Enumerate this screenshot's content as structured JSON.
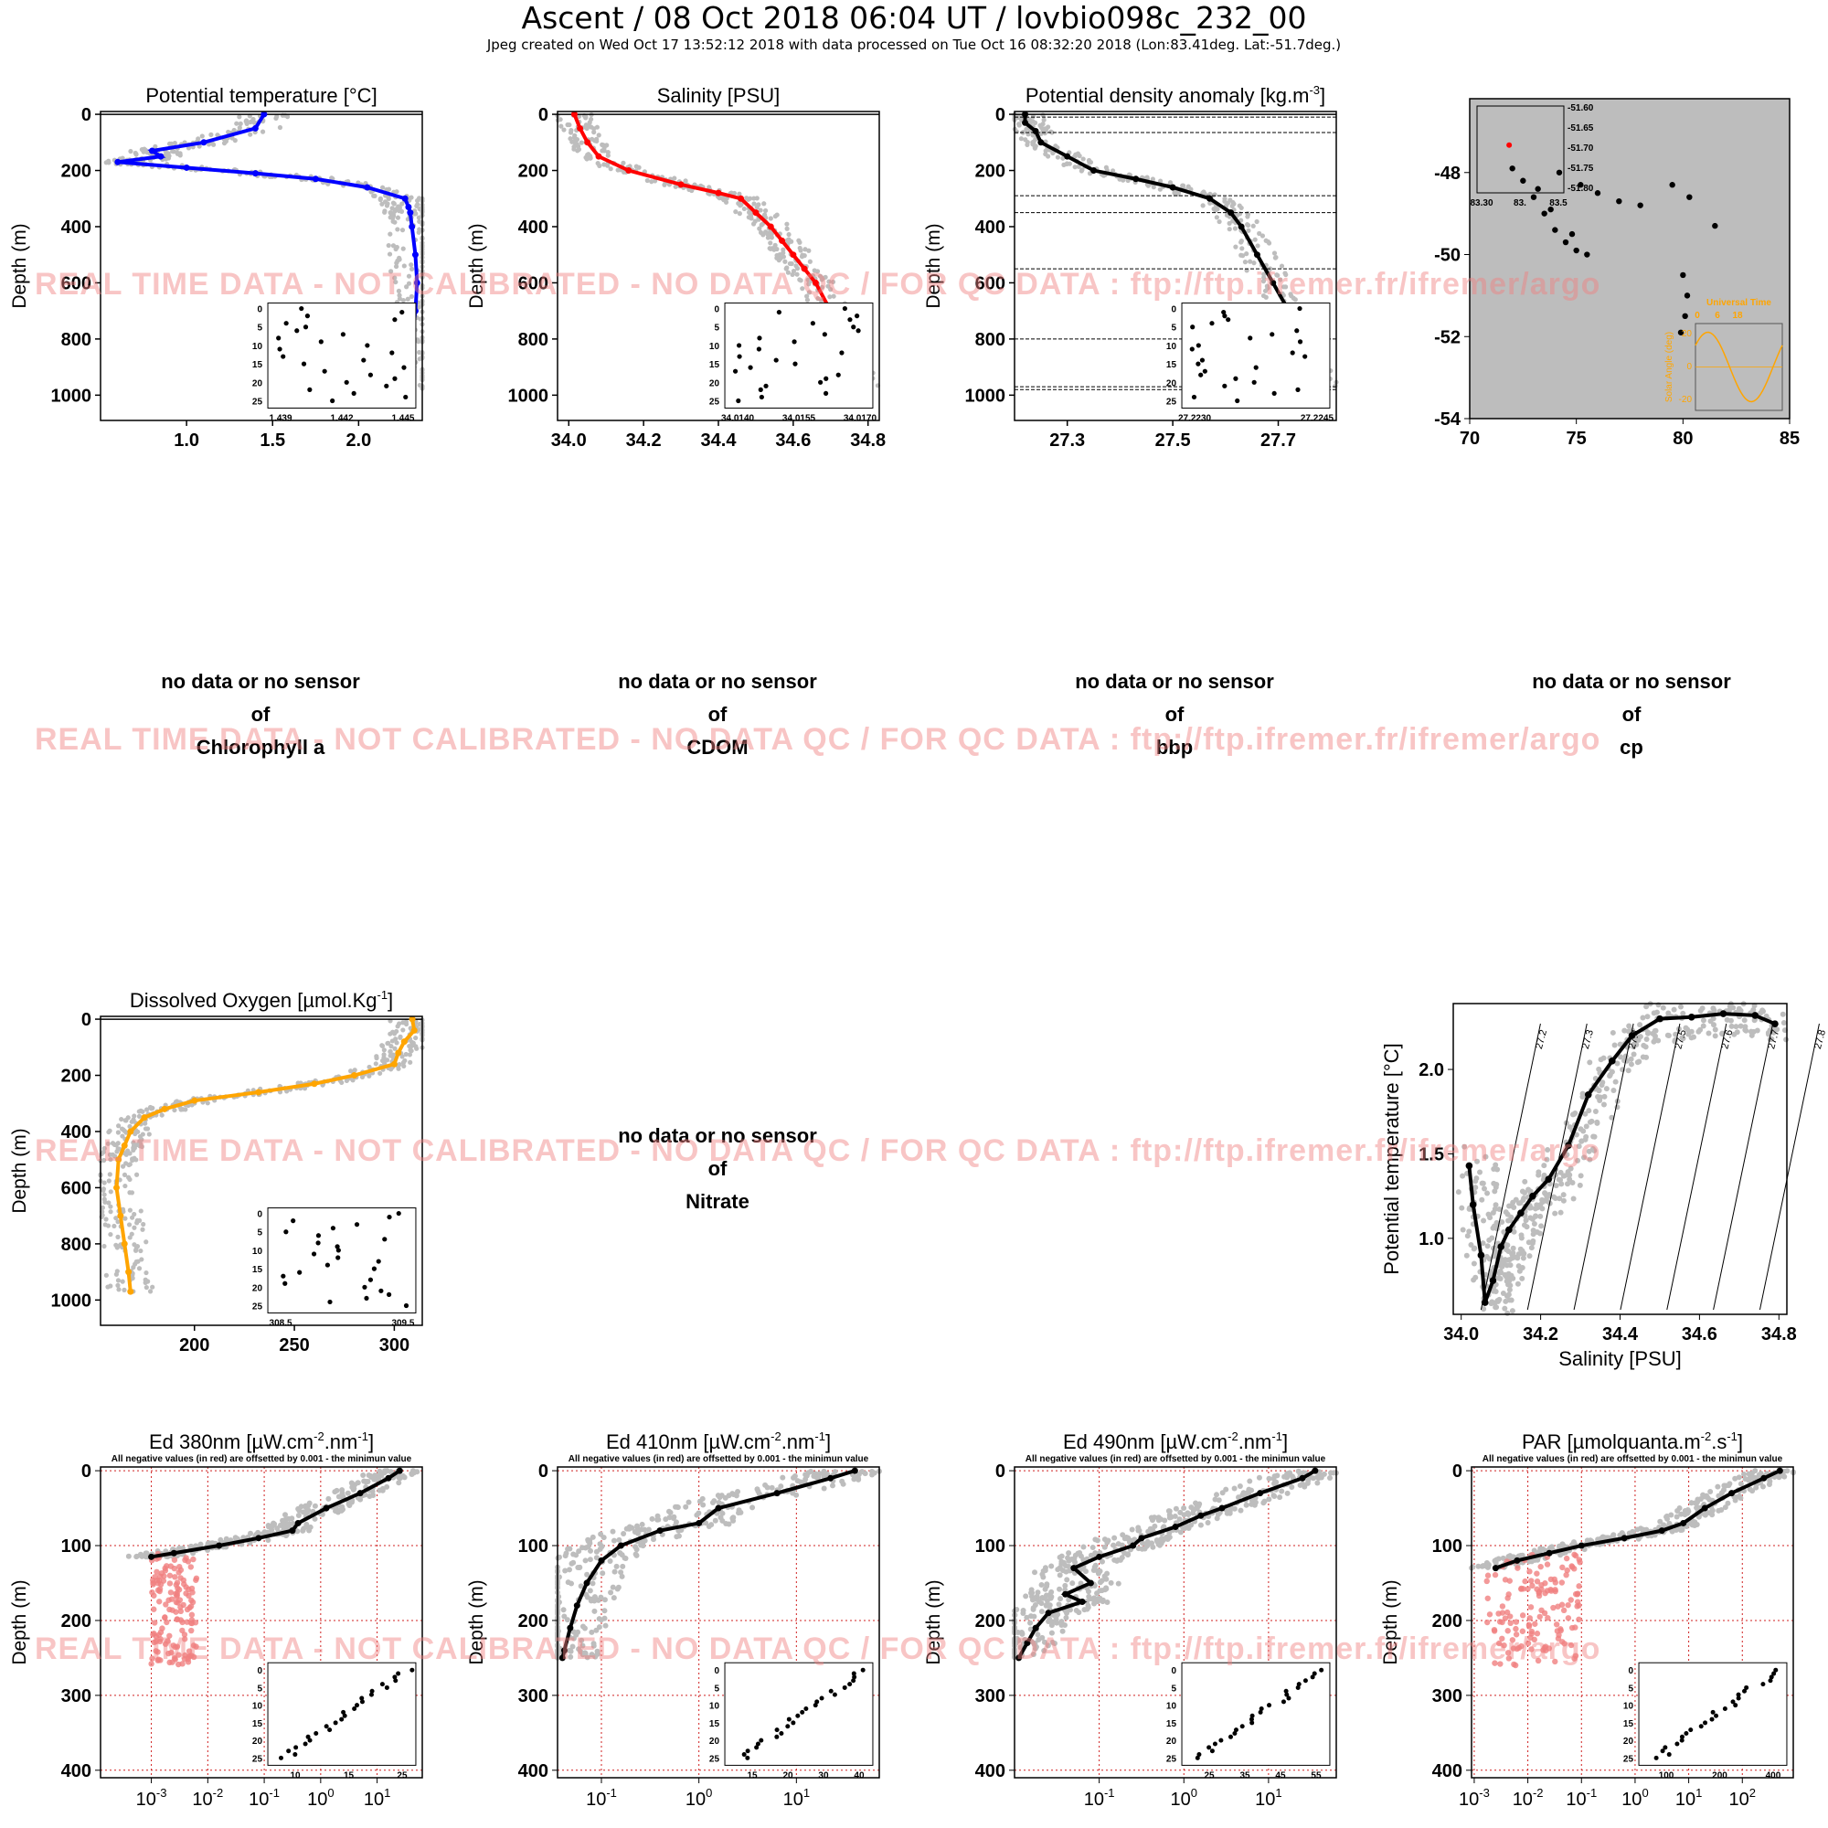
{
  "header": {
    "title": "Ascent / 08 Oct 2018 06:04 UT /  lovbio098c_232_00",
    "subtitle": "Jpeg created on Wed Oct 17 13:52:12 2018 with data processed on Tue Oct 16 08:32:20 2018 (Lon:83.41deg. Lat:-51.7deg.)"
  },
  "watermark": "REAL TIME DATA - NOT CALIBRATED - NO DATA QC   /  FOR QC DATA : ftp://ftp.ifremer.fr/ifremer/argo",
  "nodata": {
    "line1": "no data or no sensor",
    "line2": "of",
    "chla": "Chlorophyll a",
    "cdom": "CDOM",
    "bbp": "bbp",
    "cp": "cp",
    "nitrate": "Nitrate"
  },
  "light_note": "All negative values (in red) are offsetted by 0.001 - the minimun value",
  "colors": {
    "temperature": "#0000ff",
    "salinity": "#ff0000",
    "density": "#000000",
    "oxygen": "#ffa500",
    "cloud": "#bdbdbd",
    "negative": "#f08080",
    "grid": "#d02020"
  },
  "chart_data": [
    {
      "type": "line",
      "id": "temp",
      "title": "Potential temperature [°C]",
      "ylabel": "Depth (m)",
      "xlim": [
        0.5,
        2.37
      ],
      "ylim": [
        1090,
        -10
      ],
      "xticks": [
        "1.0",
        "1.5",
        "2.0"
      ],
      "xtickvals": [
        1.0,
        1.5,
        2.0
      ],
      "yticks": [
        0,
        200,
        400,
        600,
        800,
        1000
      ],
      "series": [
        {
          "depth": [
            0,
            50,
            100,
            130,
            150,
            170,
            190,
            210,
            230,
            260,
            300,
            330,
            350,
            400,
            500,
            600,
            700,
            800,
            900,
            980
          ],
          "value": [
            1.45,
            1.4,
            1.1,
            0.8,
            0.85,
            0.6,
            1.0,
            1.4,
            1.75,
            2.05,
            2.27,
            2.29,
            2.3,
            2.31,
            2.33,
            2.34,
            2.33,
            2.31,
            2.3,
            2.27
          ]
        }
      ],
      "inset": {
        "xticks": [
          "1.439",
          "1.442",
          "1.445"
        ],
        "yticks": [
          "0",
          "5",
          "10",
          "15",
          "20",
          "25"
        ]
      }
    },
    {
      "type": "line",
      "id": "sal",
      "title": "Salinity [PSU]",
      "ylabel": "Depth (m)",
      "xlim": [
        33.97,
        34.83
      ],
      "ylim": [
        1090,
        -10
      ],
      "xticks": [
        "34.0",
        "34.2",
        "34.4",
        "34.6",
        "34.8"
      ],
      "xtickvals": [
        34.0,
        34.2,
        34.4,
        34.6,
        34.8
      ],
      "yticks": [
        0,
        200,
        400,
        600,
        800,
        1000
      ],
      "series": [
        {
          "depth": [
            0,
            50,
            100,
            150,
            200,
            250,
            280,
            300,
            350,
            400,
            450,
            500,
            550,
            600,
            700,
            800,
            900,
            980
          ],
          "value": [
            34.015,
            34.03,
            34.05,
            34.08,
            34.16,
            34.3,
            34.4,
            34.46,
            34.5,
            34.54,
            34.57,
            34.6,
            34.63,
            34.66,
            34.7,
            34.73,
            34.76,
            34.79
          ]
        }
      ],
      "inset": {
        "xticks": [
          "34.0140",
          "34.0155",
          "34.0170"
        ],
        "yticks": [
          "0",
          "5",
          "10",
          "15",
          "20",
          "25"
        ]
      }
    },
    {
      "type": "line",
      "id": "dens",
      "title": "Potential density anomaly [kg.m",
      "title_sup": "-3",
      "title_end": "]",
      "ylabel": "Depth (m)",
      "xlim": [
        27.2,
        27.81
      ],
      "ylim": [
        1090,
        -10
      ],
      "xticks": [
        "27.3",
        "27.5",
        "27.7"
      ],
      "xtickvals": [
        27.3,
        27.5,
        27.7
      ],
      "yticks": [
        0,
        200,
        400,
        600,
        800,
        1000
      ],
      "series": [
        {
          "depth": [
            0,
            30,
            60,
            100,
            150,
            200,
            230,
            260,
            300,
            350,
            400,
            500,
            600,
            700,
            800,
            900,
            980
          ],
          "value": [
            27.22,
            27.22,
            27.24,
            27.25,
            27.3,
            27.35,
            27.43,
            27.5,
            27.57,
            27.61,
            27.63,
            27.66,
            27.69,
            27.72,
            27.74,
            27.76,
            27.79
          ]
        }
      ],
      "hlines": [
        10,
        65,
        290,
        350,
        550,
        800,
        970,
        980
      ],
      "inset": {
        "xticks": [
          "27.2230",
          "27.2245"
        ],
        "yticks": [
          "0",
          "5",
          "10",
          "15",
          "20",
          "25"
        ]
      }
    },
    {
      "type": "scatter",
      "id": "track",
      "xlim": [
        70,
        85
      ],
      "ylim": [
        -54,
        -46.2
      ],
      "xticks": [
        "70",
        "75",
        "80",
        "85"
      ],
      "xtickvals": [
        70,
        75,
        80,
        85
      ],
      "yticks": [
        "-48",
        "-50",
        "-52",
        "-54"
      ],
      "ytickvals": [
        -48,
        -50,
        -52,
        -54
      ],
      "points": [
        [
          72,
          -47.9
        ],
        [
          72.5,
          -48.2
        ],
        [
          73,
          -48.6
        ],
        [
          73.5,
          -49.0
        ],
        [
          74,
          -49.4
        ],
        [
          74.5,
          -49.7
        ],
        [
          75,
          -49.9
        ],
        [
          75.5,
          -50.0
        ],
        [
          74.8,
          -49.5
        ],
        [
          73.8,
          -48.9
        ],
        [
          73.2,
          -48.4
        ],
        [
          74.2,
          -48.0
        ],
        [
          75.2,
          -48.3
        ],
        [
          76,
          -48.5
        ],
        [
          77,
          -48.7
        ],
        [
          78,
          -48.8
        ],
        [
          79.5,
          -48.3
        ],
        [
          80.3,
          -48.6
        ],
        [
          81.5,
          -49.3
        ],
        [
          80,
          -50.5
        ],
        [
          80.2,
          -51.0
        ],
        [
          80.1,
          -51.5
        ],
        [
          79.9,
          -51.9
        ]
      ],
      "inset_box": {
        "lon_ticks": [
          "83.30",
          "83.",
          "83.5"
        ],
        "lat_ticks": [
          "-51.60",
          "-51.65",
          "-51.70",
          "-51.75",
          "-51.80"
        ],
        "position": [
          83.41,
          -51.7
        ]
      },
      "sun_inset": {
        "title": "Universal Time",
        "xticks": [
          "0",
          "6",
          "18"
        ],
        "ylabel": "Solar Angle (deg)",
        "yticks": [
          "20",
          "0",
          "-20"
        ]
      }
    },
    {
      "type": "line",
      "id": "oxy",
      "title": "Dissolved Oxygen [µmol.Kg",
      "title_sup": "-1",
      "title_end": "]",
      "ylabel": "Depth (m)",
      "xlim": [
        153,
        314
      ],
      "ylim": [
        1090,
        -10
      ],
      "xticks": [
        "200",
        "250",
        "300"
      ],
      "xtickvals": [
        200,
        250,
        300
      ],
      "yticks": [
        0,
        200,
        400,
        600,
        800,
        1000
      ],
      "series": [
        {
          "depth": [
            0,
            40,
            80,
            120,
            160,
            200,
            230,
            260,
            290,
            320,
            350,
            400,
            450,
            500,
            600,
            700,
            800,
            900,
            970
          ],
          "value": [
            309,
            310,
            305,
            302,
            300,
            280,
            260,
            232,
            200,
            185,
            175,
            168,
            165,
            162,
            161,
            163,
            165,
            167,
            168
          ]
        }
      ],
      "inset": {
        "xticks": [
          "308.5",
          "309.5"
        ],
        "yticks": [
          "0",
          "5",
          "10",
          "15",
          "20",
          "25"
        ]
      }
    },
    {
      "type": "scatter",
      "id": "ts",
      "xlabel": "Salinity [PSU]",
      "ylabel": "Potential temperature [°C]",
      "xlim": [
        33.98,
        34.82
      ],
      "ylim": [
        0.55,
        2.39
      ],
      "xticks": [
        "34.0",
        "34.2",
        "34.4",
        "34.6",
        "34.8"
      ],
      "xtickvals": [
        34.0,
        34.2,
        34.4,
        34.6,
        34.8
      ],
      "yticks": [
        "1.0",
        "1.5",
        "2.0"
      ],
      "ytickvals": [
        1.0,
        1.5,
        2.0
      ],
      "isopycnals": [
        "27.2",
        "27.3",
        "27.4",
        "27.5",
        "27.6",
        "27.7",
        "27.8"
      ],
      "series": [
        {
          "sal": [
            34.02,
            34.03,
            34.05,
            34.06,
            34.08,
            34.1,
            34.12,
            34.15,
            34.18,
            34.22,
            34.27,
            34.32,
            34.38,
            34.43,
            34.5,
            34.58,
            34.66,
            34.74,
            34.79
          ],
          "temp": [
            1.43,
            1.2,
            0.9,
            0.62,
            0.75,
            0.95,
            1.05,
            1.15,
            1.25,
            1.35,
            1.55,
            1.85,
            2.05,
            2.2,
            2.3,
            2.31,
            2.33,
            2.32,
            2.27
          ]
        }
      ]
    },
    {
      "type": "line",
      "id": "ed380",
      "title": "Ed 380nm [µW.cm",
      "title_sup": "-2",
      "title_mid": ".nm",
      "title_sup2": "-1",
      "title_end": "]",
      "xscale": "log",
      "ylabel": "Depth (m)",
      "xlim": [
        -3.9,
        1.8
      ],
      "ylim": [
        410,
        -5
      ],
      "xticks": [
        "10-3",
        "10-2",
        "10-1",
        "100",
        "101"
      ],
      "xtickvals": [
        -3,
        -2,
        -1,
        0,
        1
      ],
      "yticks": [
        0,
        100,
        200,
        300,
        400
      ],
      "series": [
        {
          "depth": [
            0,
            10,
            30,
            50,
            70,
            80,
            90,
            100,
            110,
            115
          ],
          "value": [
            1.4,
            1.2,
            0.7,
            0.1,
            -0.4,
            -0.5,
            -1.1,
            -1.8,
            -2.6,
            -3.0
          ]
        }
      ],
      "inset": {
        "xticks": [
          "10",
          "15",
          "25"
        ],
        "yticks": [
          "0",
          "5",
          "10",
          "15",
          "20",
          "25"
        ]
      }
    },
    {
      "type": "line",
      "id": "ed410",
      "title": "Ed 410nm [µW.cm",
      "title_sup": "-2",
      "title_mid": ".nm",
      "title_sup2": "-1",
      "title_end": "]",
      "xscale": "log",
      "ylabel": "Depth (m)",
      "xlim": [
        -1.45,
        1.85
      ],
      "ylim": [
        410,
        -5
      ],
      "xticks": [
        "10-1",
        "100",
        "101"
      ],
      "xtickvals": [
        -1,
        0,
        1
      ],
      "yticks": [
        0,
        100,
        200,
        300,
        400
      ],
      "series": [
        {
          "depth": [
            0,
            10,
            30,
            50,
            70,
            80,
            100,
            120,
            150,
            180,
            210,
            240,
            250
          ],
          "value": [
            1.6,
            1.35,
            0.8,
            0.2,
            0.0,
            -0.4,
            -0.8,
            -1.0,
            -1.15,
            -1.25,
            -1.32,
            -1.38,
            -1.4
          ]
        }
      ],
      "inset": {
        "xticks": [
          "15",
          "20",
          "30",
          "40"
        ],
        "yticks": [
          "0",
          "5",
          "10",
          "15",
          "20",
          "25"
        ]
      }
    },
    {
      "type": "line",
      "id": "ed490",
      "title": "Ed 490nm [µW.cm",
      "title_sup": "-2",
      "title_mid": ".nm",
      "title_sup2": "-1",
      "title_end": "]",
      "xscale": "log",
      "ylabel": "Depth (m)",
      "xlim": [
        -2.0,
        1.8
      ],
      "ylim": [
        410,
        -5
      ],
      "xticks": [
        "10-1",
        "100",
        "101"
      ],
      "xtickvals": [
        -1,
        0,
        1
      ],
      "yticks": [
        0,
        100,
        200,
        300,
        400
      ],
      "series": [
        {
          "depth": [
            0,
            10,
            30,
            50,
            60,
            75,
            90,
            100,
            115,
            130,
            150,
            165,
            175,
            190,
            210,
            230,
            250
          ],
          "value": [
            1.55,
            1.4,
            0.9,
            0.45,
            0.2,
            -0.1,
            -0.5,
            -0.6,
            -1.0,
            -1.3,
            -1.1,
            -1.4,
            -1.2,
            -1.6,
            -1.75,
            -1.85,
            -1.95
          ]
        }
      ],
      "inset": {
        "xticks": [
          "25",
          "35",
          "45",
          "55"
        ],
        "yticks": [
          "0",
          "5",
          "10",
          "15",
          "20",
          "25"
        ]
      }
    },
    {
      "type": "line",
      "id": "par",
      "title": "PAR [µmolquanta.m",
      "title_sup": "-2",
      "title_mid": ".s",
      "title_sup2": "-1",
      "title_end": "]",
      "xscale": "log",
      "ylabel": "Depth (m)",
      "xlim": [
        -3.05,
        2.95
      ],
      "ylim": [
        410,
        -5
      ],
      "xticks": [
        "10-3",
        "10-2",
        "10-1",
        "100",
        "101",
        "102"
      ],
      "xtickvals": [
        -3,
        -2,
        -1,
        0,
        1,
        2
      ],
      "yticks": [
        0,
        100,
        200,
        300,
        400
      ],
      "series": [
        {
          "depth": [
            0,
            10,
            30,
            50,
            70,
            80,
            90,
            100,
            110,
            120,
            130
          ],
          "value": [
            2.7,
            2.4,
            1.8,
            1.3,
            0.9,
            0.5,
            -0.2,
            -1.0,
            -1.6,
            -2.2,
            -2.6
          ]
        }
      ],
      "inset": {
        "xticks": [
          "100",
          "200",
          "400"
        ],
        "yticks": [
          "0",
          "5",
          "10",
          "15",
          "20",
          "25"
        ]
      }
    }
  ]
}
